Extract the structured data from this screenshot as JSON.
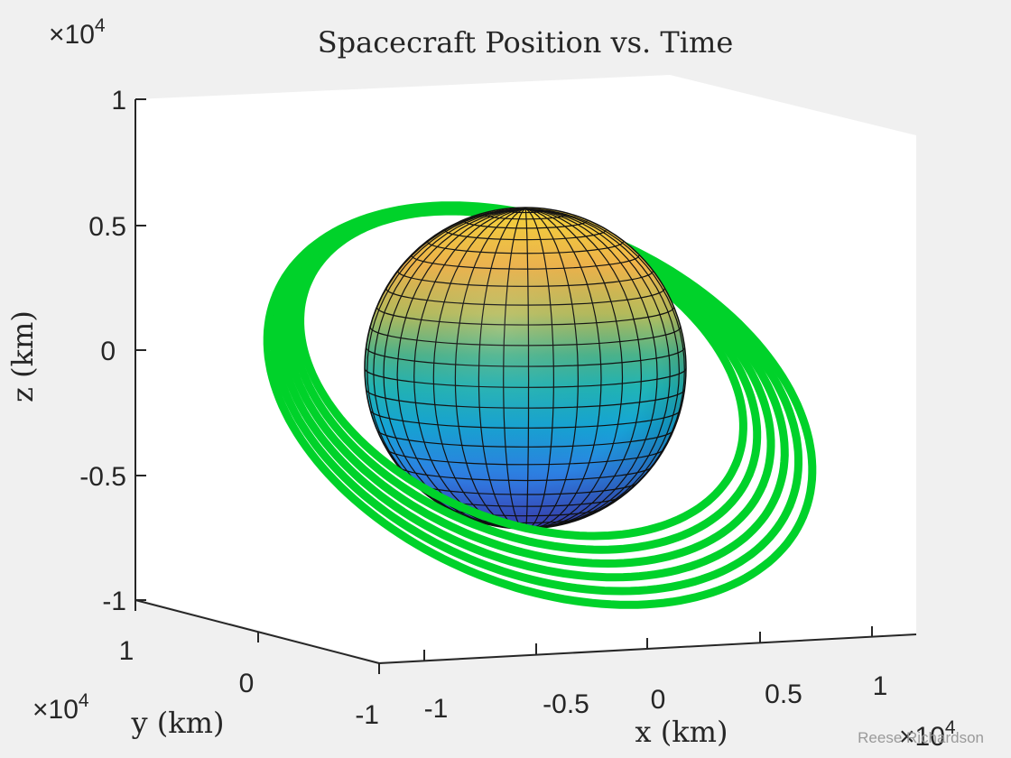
{
  "chart_data": {
    "type": "3d-surface-line",
    "title": "Spacecraft Position vs. Time",
    "xlabel": "x (km)",
    "ylabel": "y (km)",
    "zlabel": "z (km)",
    "x_exponent_prefix": "×10",
    "x_exponent": "4",
    "y_exponent_prefix": "×10",
    "y_exponent": "4",
    "z_exponent_prefix": "×10",
    "z_exponent": "4",
    "x_ticks": [
      "-1",
      "-0.5",
      "0",
      "0.5",
      "1"
    ],
    "y_ticks": [
      "-1",
      "0",
      "1"
    ],
    "z_ticks": [
      "1",
      "0.5",
      "0",
      "-0.5",
      "-1"
    ],
    "xlim": [
      -1,
      1
    ],
    "ylim": [
      -1,
      1
    ],
    "zlim": [
      -1,
      1
    ],
    "sphere": {
      "name": "planet surface",
      "colormap": "parula",
      "radius": 0.64
    },
    "orbit": {
      "color": "#00d22a",
      "loops": 6,
      "semi_axis_range": [
        0.74,
        0.91
      ]
    },
    "grid": false
  },
  "watermark": "Reese Richardson"
}
